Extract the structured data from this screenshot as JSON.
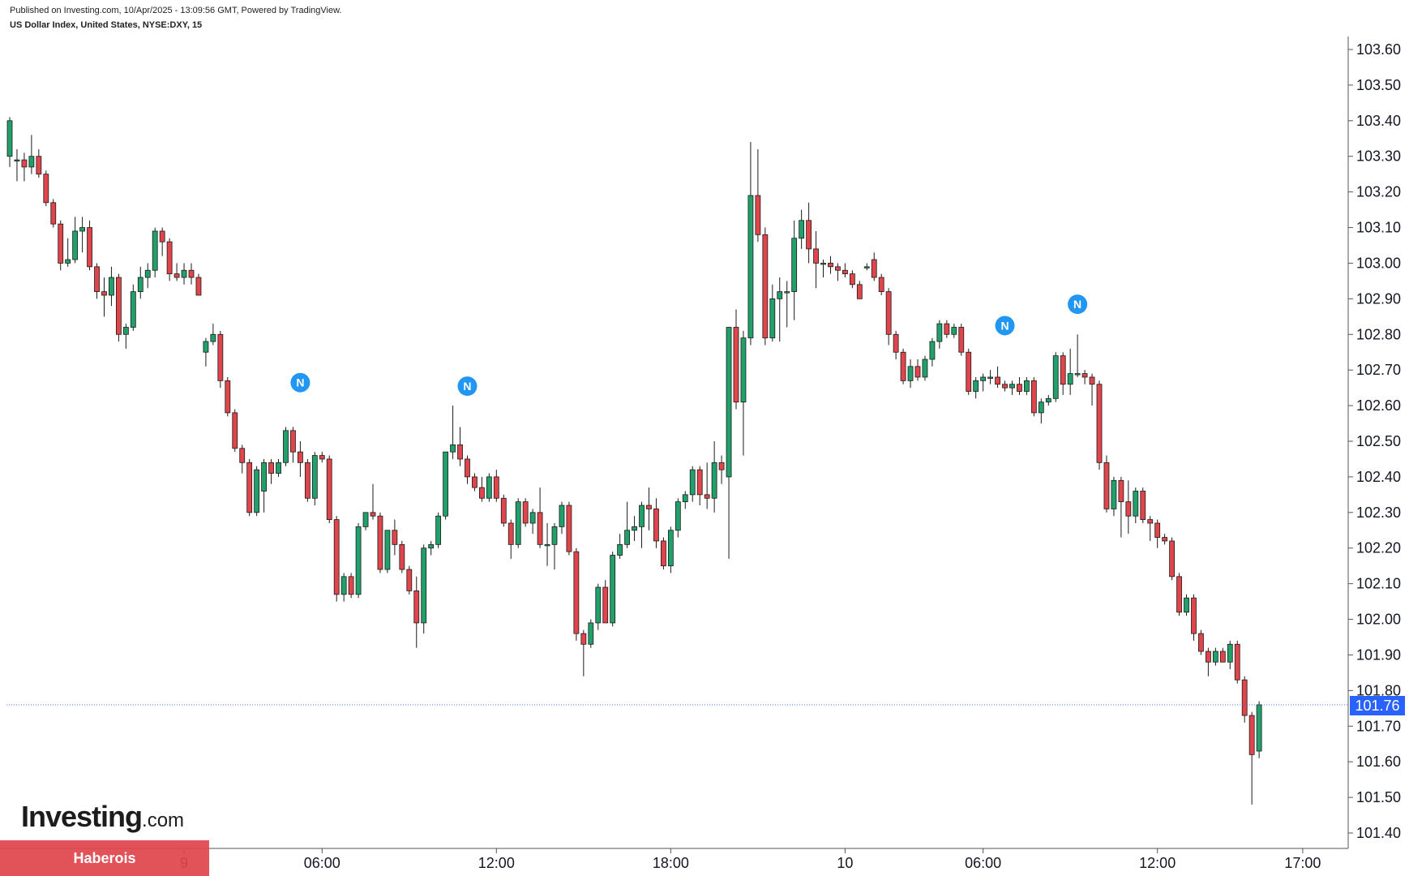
{
  "header": {
    "published": "Published on Investing.com, 10/Apr/2025 - 13:09:56 GMT, Powered by TradingView.",
    "symbol": "US Dollar Index, United States, NYSE:DXY, 15"
  },
  "branding": {
    "logo_main": "Investing",
    "logo_suffix": ".com",
    "watermark": "Haberois"
  },
  "colors": {
    "up": "#22a06b",
    "down": "#e0454b",
    "last_price_line": "#2962ff",
    "news_marker": "#2196f3"
  },
  "chart_data": {
    "type": "candlestick",
    "title": "",
    "ylim": [
      101.36,
      103.64
    ],
    "yticks": [
      "103.60",
      "103.50",
      "103.40",
      "103.30",
      "103.20",
      "103.10",
      "103.00",
      "102.90",
      "102.80",
      "102.70",
      "102.60",
      "102.50",
      "102.40",
      "102.30",
      "102.20",
      "102.10",
      "102.00",
      "101.90",
      "101.80",
      "101.70",
      "101.60",
      "101.50",
      "101.40"
    ],
    "xticks": [
      {
        "label": "9",
        "idx": 24
      },
      {
        "label": "06:00",
        "idx": 43
      },
      {
        "label": "12:00",
        "idx": 67
      },
      {
        "label": "18:00",
        "idx": 91
      },
      {
        "label": "10",
        "idx": 115
      },
      {
        "label": "06:00",
        "idx": 134
      },
      {
        "label": "12:00",
        "idx": 158
      },
      {
        "label": "17:00",
        "idx": 178
      }
    ],
    "last_price": "101.76",
    "last_price_value": 101.76,
    "news_markers": [
      {
        "label": "N",
        "idx": 40,
        "price": 102.61
      },
      {
        "label": "N",
        "idx": 63,
        "price": 102.6
      },
      {
        "label": "N",
        "idx": 137,
        "price": 102.77
      },
      {
        "label": "N",
        "idx": 147,
        "price": 102.83
      }
    ],
    "candles": [
      {
        "o": 103.3,
        "h": 103.41,
        "l": 103.27,
        "c": 103.4
      },
      {
        "o": 103.29,
        "h": 103.32,
        "l": 103.23,
        "c": 103.29
      },
      {
        "o": 103.29,
        "h": 103.31,
        "l": 103.23,
        "c": 103.27
      },
      {
        "o": 103.27,
        "h": 103.36,
        "l": 103.25,
        "c": 103.3
      },
      {
        "o": 103.3,
        "h": 103.32,
        "l": 103.24,
        "c": 103.25
      },
      {
        "o": 103.25,
        "h": 103.26,
        "l": 103.16,
        "c": 103.17
      },
      {
        "o": 103.17,
        "h": 103.18,
        "l": 103.1,
        "c": 103.11
      },
      {
        "o": 103.11,
        "h": 103.12,
        "l": 102.98,
        "c": 103.0
      },
      {
        "o": 103.0,
        "h": 103.07,
        "l": 102.99,
        "c": 103.01
      },
      {
        "o": 103.01,
        "h": 103.13,
        "l": 103.0,
        "c": 103.09
      },
      {
        "o": 103.09,
        "h": 103.13,
        "l": 103.03,
        "c": 103.1
      },
      {
        "o": 103.1,
        "h": 103.12,
        "l": 102.98,
        "c": 102.99
      },
      {
        "o": 102.99,
        "h": 103.0,
        "l": 102.9,
        "c": 102.92
      },
      {
        "o": 102.92,
        "h": 102.96,
        "l": 102.85,
        "c": 102.91
      },
      {
        "o": 102.91,
        "h": 102.99,
        "l": 102.88,
        "c": 102.96
      },
      {
        "o": 102.96,
        "h": 102.97,
        "l": 102.78,
        "c": 102.8
      },
      {
        "o": 102.8,
        "h": 102.83,
        "l": 102.76,
        "c": 102.82
      },
      {
        "o": 102.82,
        "h": 102.94,
        "l": 102.81,
        "c": 102.92
      },
      {
        "o": 102.92,
        "h": 102.99,
        "l": 102.9,
        "c": 102.96
      },
      {
        "o": 102.96,
        "h": 103.0,
        "l": 102.93,
        "c": 102.98
      },
      {
        "o": 102.98,
        "h": 103.1,
        "l": 102.96,
        "c": 103.09
      },
      {
        "o": 103.09,
        "h": 103.1,
        "l": 103.02,
        "c": 103.06
      },
      {
        "o": 103.06,
        "h": 103.07,
        "l": 102.95,
        "c": 102.97
      },
      {
        "o": 102.97,
        "h": 103.0,
        "l": 102.95,
        "c": 102.96
      },
      {
        "o": 102.96,
        "h": 103.0,
        "l": 102.94,
        "c": 102.98
      },
      {
        "o": 102.98,
        "h": 103.0,
        "l": 102.94,
        "c": 102.96
      },
      {
        "o": 102.96,
        "h": 102.97,
        "l": 102.91,
        "c": 102.91
      },
      {
        "o": 102.75,
        "h": 102.79,
        "l": 102.71,
        "c": 102.78
      },
      {
        "o": 102.78,
        "h": 102.83,
        "l": 102.77,
        "c": 102.8
      },
      {
        "o": 102.8,
        "h": 102.81,
        "l": 102.65,
        "c": 102.67
      },
      {
        "o": 102.67,
        "h": 102.68,
        "l": 102.57,
        "c": 102.58
      },
      {
        "o": 102.58,
        "h": 102.59,
        "l": 102.47,
        "c": 102.48
      },
      {
        "o": 102.48,
        "h": 102.49,
        "l": 102.41,
        "c": 102.44
      },
      {
        "o": 102.44,
        "h": 102.45,
        "l": 102.29,
        "c": 102.3
      },
      {
        "o": 102.3,
        "h": 102.43,
        "l": 102.29,
        "c": 102.42
      },
      {
        "o": 102.36,
        "h": 102.45,
        "l": 102.3,
        "c": 102.44
      },
      {
        "o": 102.44,
        "h": 102.45,
        "l": 102.38,
        "c": 102.41
      },
      {
        "o": 102.41,
        "h": 102.45,
        "l": 102.4,
        "c": 102.44
      },
      {
        "o": 102.44,
        "h": 102.54,
        "l": 102.43,
        "c": 102.53
      },
      {
        "o": 102.53,
        "h": 102.54,
        "l": 102.44,
        "c": 102.47
      },
      {
        "o": 102.47,
        "h": 102.5,
        "l": 102.4,
        "c": 102.44
      },
      {
        "o": 102.44,
        "h": 102.45,
        "l": 102.33,
        "c": 102.34
      },
      {
        "o": 102.34,
        "h": 102.47,
        "l": 102.32,
        "c": 102.46
      },
      {
        "o": 102.46,
        "h": 102.47,
        "l": 102.44,
        "c": 102.45
      },
      {
        "o": 102.45,
        "h": 102.46,
        "l": 102.27,
        "c": 102.28
      },
      {
        "o": 102.28,
        "h": 102.29,
        "l": 102.05,
        "c": 102.07
      },
      {
        "o": 102.07,
        "h": 102.13,
        "l": 102.05,
        "c": 102.12
      },
      {
        "o": 102.12,
        "h": 102.13,
        "l": 102.06,
        "c": 102.07
      },
      {
        "o": 102.07,
        "h": 102.27,
        "l": 102.06,
        "c": 102.26
      },
      {
        "o": 102.26,
        "h": 102.3,
        "l": 102.25,
        "c": 102.3
      },
      {
        "o": 102.3,
        "h": 102.38,
        "l": 102.28,
        "c": 102.29
      },
      {
        "o": 102.29,
        "h": 102.3,
        "l": 102.13,
        "c": 102.14
      },
      {
        "o": 102.14,
        "h": 102.25,
        "l": 102.13,
        "c": 102.25
      },
      {
        "o": 102.25,
        "h": 102.28,
        "l": 102.18,
        "c": 102.21
      },
      {
        "o": 102.21,
        "h": 102.22,
        "l": 102.13,
        "c": 102.14
      },
      {
        "o": 102.14,
        "h": 102.15,
        "l": 102.07,
        "c": 102.08
      },
      {
        "o": 102.08,
        "h": 102.12,
        "l": 101.92,
        "c": 101.99
      },
      {
        "o": 101.99,
        "h": 102.21,
        "l": 101.96,
        "c": 102.2
      },
      {
        "o": 102.2,
        "h": 102.22,
        "l": 102.18,
        "c": 102.21
      },
      {
        "o": 102.21,
        "h": 102.3,
        "l": 102.2,
        "c": 102.29
      },
      {
        "o": 102.29,
        "h": 102.47,
        "l": 102.28,
        "c": 102.47
      },
      {
        "o": 102.47,
        "h": 102.6,
        "l": 102.45,
        "c": 102.49
      },
      {
        "o": 102.49,
        "h": 102.54,
        "l": 102.43,
        "c": 102.45
      },
      {
        "o": 102.45,
        "h": 102.46,
        "l": 102.38,
        "c": 102.4
      },
      {
        "o": 102.4,
        "h": 102.41,
        "l": 102.36,
        "c": 102.37
      },
      {
        "o": 102.37,
        "h": 102.4,
        "l": 102.33,
        "c": 102.34
      },
      {
        "o": 102.34,
        "h": 102.41,
        "l": 102.33,
        "c": 102.4
      },
      {
        "o": 102.4,
        "h": 102.42,
        "l": 102.33,
        "c": 102.34
      },
      {
        "o": 102.34,
        "h": 102.35,
        "l": 102.26,
        "c": 102.27
      },
      {
        "o": 102.27,
        "h": 102.28,
        "l": 102.17,
        "c": 102.21
      },
      {
        "o": 102.21,
        "h": 102.34,
        "l": 102.2,
        "c": 102.33
      },
      {
        "o": 102.33,
        "h": 102.34,
        "l": 102.26,
        "c": 102.27
      },
      {
        "o": 102.27,
        "h": 102.31,
        "l": 102.24,
        "c": 102.3
      },
      {
        "o": 102.3,
        "h": 102.37,
        "l": 102.2,
        "c": 102.21
      },
      {
        "o": 102.21,
        "h": 102.27,
        "l": 102.15,
        "c": 102.21
      },
      {
        "o": 102.21,
        "h": 102.27,
        "l": 102.14,
        "c": 102.26
      },
      {
        "o": 102.26,
        "h": 102.33,
        "l": 102.24,
        "c": 102.32
      },
      {
        "o": 102.32,
        "h": 102.33,
        "l": 102.18,
        "c": 102.19
      },
      {
        "o": 102.19,
        "h": 102.2,
        "l": 101.94,
        "c": 101.96
      },
      {
        "o": 101.96,
        "h": 101.97,
        "l": 101.84,
        "c": 101.93
      },
      {
        "o": 101.93,
        "h": 102.0,
        "l": 101.92,
        "c": 101.99
      },
      {
        "o": 101.99,
        "h": 102.1,
        "l": 101.97,
        "c": 102.09
      },
      {
        "o": 102.09,
        "h": 102.11,
        "l": 101.99,
        "c": 101.99
      },
      {
        "o": 101.99,
        "h": 102.19,
        "l": 101.98,
        "c": 102.18
      },
      {
        "o": 102.18,
        "h": 102.24,
        "l": 102.17,
        "c": 102.21
      },
      {
        "o": 102.21,
        "h": 102.33,
        "l": 102.2,
        "c": 102.25
      },
      {
        "o": 102.25,
        "h": 102.29,
        "l": 102.22,
        "c": 102.26
      },
      {
        "o": 102.26,
        "h": 102.33,
        "l": 102.2,
        "c": 102.32
      },
      {
        "o": 102.32,
        "h": 102.37,
        "l": 102.25,
        "c": 102.31
      },
      {
        "o": 102.31,
        "h": 102.34,
        "l": 102.2,
        "c": 102.22
      },
      {
        "o": 102.22,
        "h": 102.23,
        "l": 102.14,
        "c": 102.15
      },
      {
        "o": 102.15,
        "h": 102.26,
        "l": 102.13,
        "c": 102.25
      },
      {
        "o": 102.25,
        "h": 102.34,
        "l": 102.23,
        "c": 102.33
      },
      {
        "o": 102.33,
        "h": 102.36,
        "l": 102.31,
        "c": 102.35
      },
      {
        "o": 102.35,
        "h": 102.43,
        "l": 102.33,
        "c": 102.42
      },
      {
        "o": 102.42,
        "h": 102.43,
        "l": 102.32,
        "c": 102.35
      },
      {
        "o": 102.35,
        "h": 102.44,
        "l": 102.31,
        "c": 102.34
      },
      {
        "o": 102.34,
        "h": 102.5,
        "l": 102.3,
        "c": 102.44
      },
      {
        "o": 102.44,
        "h": 102.46,
        "l": 102.38,
        "c": 102.42
      },
      {
        "o": 102.4,
        "h": 102.82,
        "l": 102.17,
        "c": 102.82
      },
      {
        "o": 102.82,
        "h": 102.87,
        "l": 102.59,
        "c": 102.61
      },
      {
        "o": 102.61,
        "h": 102.81,
        "l": 102.46,
        "c": 102.79
      },
      {
        "o": 102.79,
        "h": 103.34,
        "l": 102.77,
        "c": 103.19
      },
      {
        "o": 103.19,
        "h": 103.32,
        "l": 103.06,
        "c": 103.08
      },
      {
        "o": 103.08,
        "h": 103.1,
        "l": 102.77,
        "c": 102.79
      },
      {
        "o": 102.79,
        "h": 102.94,
        "l": 102.78,
        "c": 102.9
      },
      {
        "o": 102.9,
        "h": 102.96,
        "l": 102.78,
        "c": 102.92
      },
      {
        "o": 102.92,
        "h": 102.95,
        "l": 102.82,
        "c": 102.92
      },
      {
        "o": 102.92,
        "h": 103.12,
        "l": 102.84,
        "c": 103.07
      },
      {
        "o": 103.07,
        "h": 103.15,
        "l": 103.04,
        "c": 103.12
      },
      {
        "o": 103.12,
        "h": 103.17,
        "l": 103.0,
        "c": 103.04
      },
      {
        "o": 103.04,
        "h": 103.09,
        "l": 102.93,
        "c": 103.0
      },
      {
        "o": 103.0,
        "h": 103.01,
        "l": 102.96,
        "c": 103.0
      },
      {
        "o": 103.0,
        "h": 103.02,
        "l": 102.97,
        "c": 102.99
      },
      {
        "o": 102.99,
        "h": 103.0,
        "l": 102.95,
        "c": 102.98
      },
      {
        "o": 102.98,
        "h": 103.0,
        "l": 102.96,
        "c": 102.97
      },
      {
        "o": 102.97,
        "h": 102.98,
        "l": 102.93,
        "c": 102.94
      },
      {
        "o": 102.94,
        "h": 102.95,
        "l": 102.9,
        "c": 102.9
      },
      {
        "o": 102.99,
        "h": 103.0,
        "l": 102.98,
        "c": 102.99
      },
      {
        "o": 103.01,
        "h": 103.03,
        "l": 102.95,
        "c": 102.96
      },
      {
        "o": 102.96,
        "h": 102.97,
        "l": 102.91,
        "c": 102.92
      },
      {
        "o": 102.92,
        "h": 102.93,
        "l": 102.77,
        "c": 102.8
      },
      {
        "o": 102.8,
        "h": 102.81,
        "l": 102.73,
        "c": 102.75
      },
      {
        "o": 102.75,
        "h": 102.76,
        "l": 102.66,
        "c": 102.67
      },
      {
        "o": 102.67,
        "h": 102.73,
        "l": 102.65,
        "c": 102.71
      },
      {
        "o": 102.71,
        "h": 102.73,
        "l": 102.67,
        "c": 102.68
      },
      {
        "o": 102.68,
        "h": 102.74,
        "l": 102.67,
        "c": 102.73
      },
      {
        "o": 102.73,
        "h": 102.79,
        "l": 102.71,
        "c": 102.78
      },
      {
        "o": 102.78,
        "h": 102.84,
        "l": 102.76,
        "c": 102.83
      },
      {
        "o": 102.83,
        "h": 102.84,
        "l": 102.79,
        "c": 102.8
      },
      {
        "o": 102.8,
        "h": 102.83,
        "l": 102.79,
        "c": 102.82
      },
      {
        "o": 102.82,
        "h": 102.83,
        "l": 102.74,
        "c": 102.75
      },
      {
        "o": 102.75,
        "h": 102.76,
        "l": 102.63,
        "c": 102.64
      },
      {
        "o": 102.64,
        "h": 102.68,
        "l": 102.62,
        "c": 102.67
      },
      {
        "o": 102.67,
        "h": 102.69,
        "l": 102.64,
        "c": 102.68
      },
      {
        "o": 102.68,
        "h": 102.7,
        "l": 102.66,
        "c": 102.68
      },
      {
        "o": 102.68,
        "h": 102.71,
        "l": 102.65,
        "c": 102.66
      },
      {
        "o": 102.66,
        "h": 102.67,
        "l": 102.64,
        "c": 102.65
      },
      {
        "o": 102.65,
        "h": 102.67,
        "l": 102.63,
        "c": 102.66
      },
      {
        "o": 102.66,
        "h": 102.68,
        "l": 102.63,
        "c": 102.64
      },
      {
        "o": 102.64,
        "h": 102.68,
        "l": 102.63,
        "c": 102.67
      },
      {
        "o": 102.67,
        "h": 102.68,
        "l": 102.57,
        "c": 102.58
      },
      {
        "o": 102.58,
        "h": 102.62,
        "l": 102.55,
        "c": 102.61
      },
      {
        "o": 102.61,
        "h": 102.63,
        "l": 102.6,
        "c": 102.62
      },
      {
        "o": 102.62,
        "h": 102.75,
        "l": 102.61,
        "c": 102.74
      },
      {
        "o": 102.74,
        "h": 102.75,
        "l": 102.63,
        "c": 102.66
      },
      {
        "o": 102.66,
        "h": 102.76,
        "l": 102.63,
        "c": 102.69
      },
      {
        "o": 102.69,
        "h": 102.8,
        "l": 102.68,
        "c": 102.69
      },
      {
        "o": 102.69,
        "h": 102.7,
        "l": 102.66,
        "c": 102.68
      },
      {
        "o": 102.68,
        "h": 102.69,
        "l": 102.6,
        "c": 102.66
      },
      {
        "o": 102.66,
        "h": 102.67,
        "l": 102.42,
        "c": 102.44
      },
      {
        "o": 102.44,
        "h": 102.46,
        "l": 102.3,
        "c": 102.31
      },
      {
        "o": 102.31,
        "h": 102.4,
        "l": 102.29,
        "c": 102.39
      },
      {
        "o": 102.39,
        "h": 102.4,
        "l": 102.23,
        "c": 102.33
      },
      {
        "o": 102.33,
        "h": 102.39,
        "l": 102.24,
        "c": 102.29
      },
      {
        "o": 102.29,
        "h": 102.37,
        "l": 102.27,
        "c": 102.36
      },
      {
        "o": 102.36,
        "h": 102.37,
        "l": 102.27,
        "c": 102.28
      },
      {
        "o": 102.28,
        "h": 102.29,
        "l": 102.22,
        "c": 102.27
      },
      {
        "o": 102.27,
        "h": 102.28,
        "l": 102.2,
        "c": 102.23
      },
      {
        "o": 102.23,
        "h": 102.24,
        "l": 102.21,
        "c": 102.22
      },
      {
        "o": 102.22,
        "h": 102.23,
        "l": 102.11,
        "c": 102.12
      },
      {
        "o": 102.12,
        "h": 102.13,
        "l": 102.01,
        "c": 102.02
      },
      {
        "o": 102.02,
        "h": 102.07,
        "l": 102.01,
        "c": 102.06
      },
      {
        "o": 102.06,
        "h": 102.07,
        "l": 101.94,
        "c": 101.96
      },
      {
        "o": 101.96,
        "h": 101.97,
        "l": 101.9,
        "c": 101.91
      },
      {
        "o": 101.91,
        "h": 101.92,
        "l": 101.84,
        "c": 101.88
      },
      {
        "o": 101.88,
        "h": 101.92,
        "l": 101.87,
        "c": 101.91
      },
      {
        "o": 101.91,
        "h": 101.92,
        "l": 101.88,
        "c": 101.88
      },
      {
        "o": 101.88,
        "h": 101.94,
        "l": 101.86,
        "c": 101.93
      },
      {
        "o": 101.93,
        "h": 101.94,
        "l": 101.82,
        "c": 101.83
      },
      {
        "o": 101.83,
        "h": 101.84,
        "l": 101.71,
        "c": 101.73
      },
      {
        "o": 101.73,
        "h": 101.74,
        "l": 101.48,
        "c": 101.62
      },
      {
        "o": 101.63,
        "h": 101.77,
        "l": 101.61,
        "c": 101.76
      }
    ]
  }
}
